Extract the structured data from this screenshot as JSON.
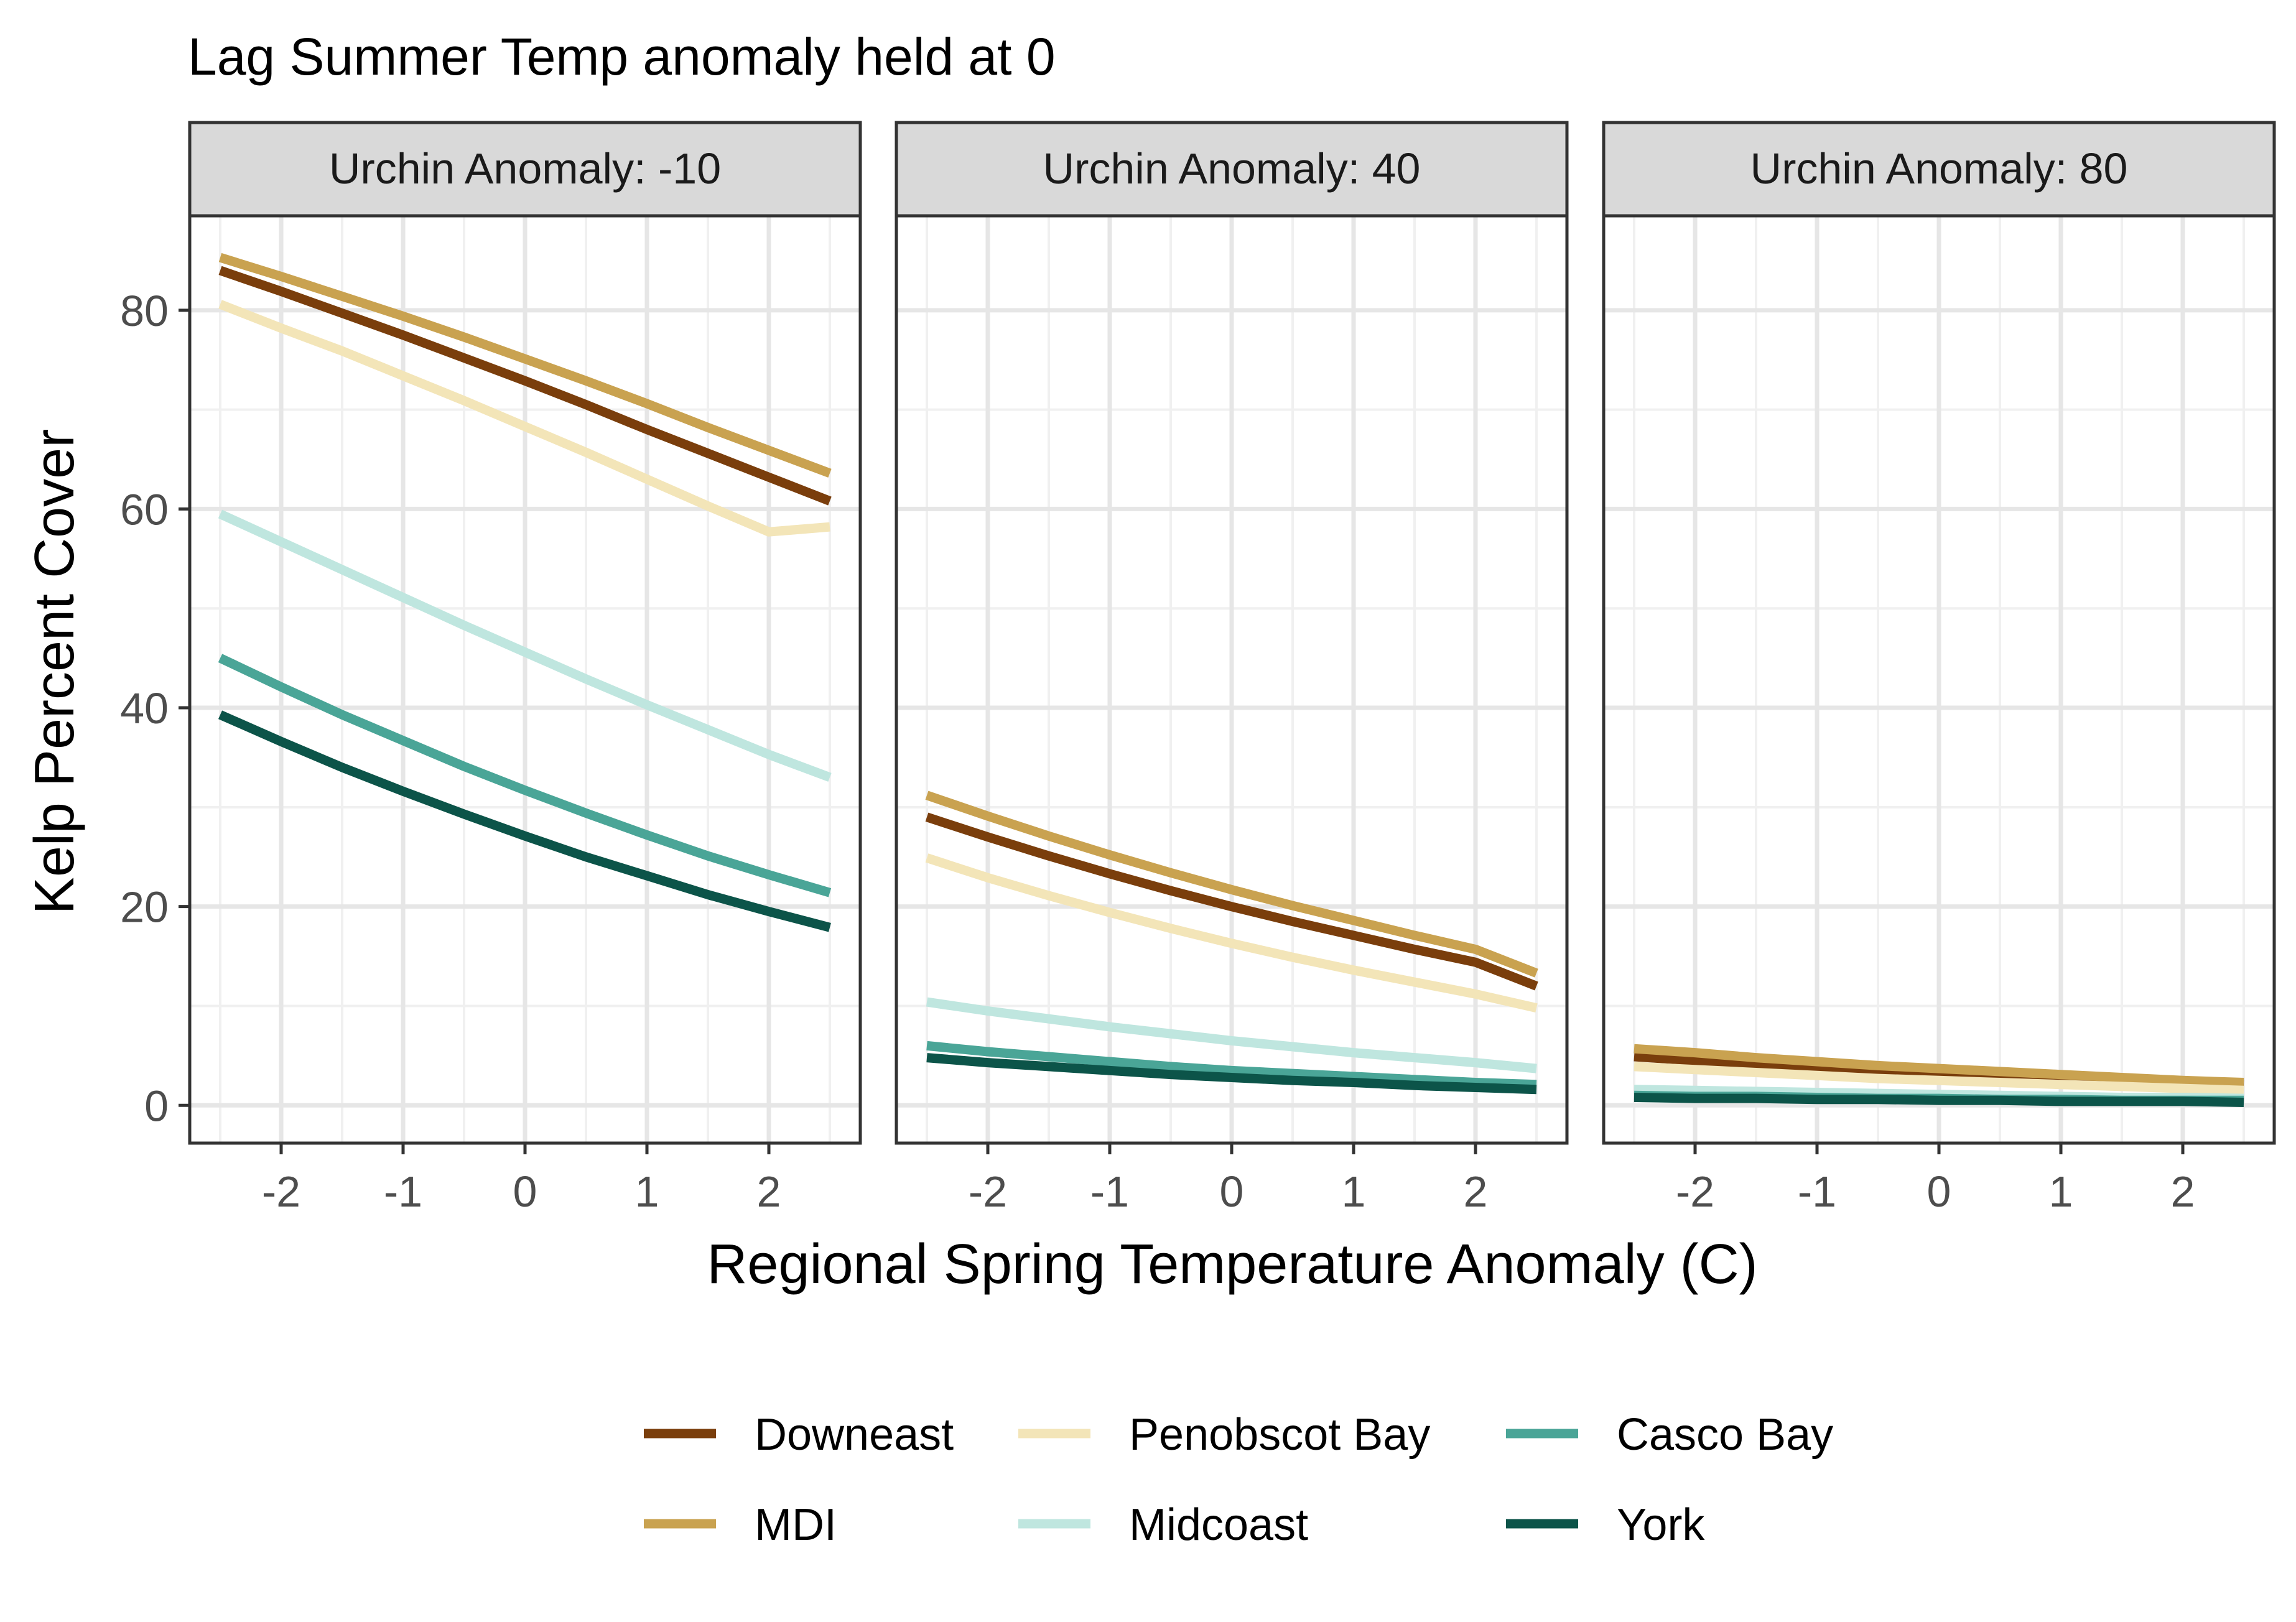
{
  "chart_data": {
    "type": "line",
    "title": "Lag Summer Temp anomaly held at 0",
    "xlabel": "Regional Spring Temperature Anomaly (C)",
    "ylabel": "Kelp Percent Cover",
    "xlim": [
      -2.75,
      2.75
    ],
    "ylim": [
      -3.8,
      89.5
    ],
    "x_ticks": [
      -2,
      -1,
      0,
      1,
      2
    ],
    "x_tick_labels": [
      "-2",
      "-1",
      "0",
      "1",
      "2"
    ],
    "y_ticks": [
      0,
      20,
      40,
      60,
      80
    ],
    "y_tick_labels": [
      "0",
      "20",
      "40",
      "60",
      "80"
    ],
    "grid": true,
    "legend_position": "bottom",
    "x": [
      -2.5,
      -2,
      -1.5,
      -1,
      -0.5,
      0,
      0.5,
      1,
      1.5,
      2,
      2.5
    ],
    "series_styles": [
      {
        "name": "Downeast",
        "color": "#7a3e0c"
      },
      {
        "name": "MDI",
        "color": "#c9a250"
      },
      {
        "name": "Penobscot Bay",
        "color": "#f3e5b8"
      },
      {
        "name": "Midcoast",
        "color": "#bfe6df"
      },
      {
        "name": "Casco Bay",
        "color": "#4aa597"
      },
      {
        "name": "York",
        "color": "#0c5449"
      }
    ],
    "panels": [
      {
        "strip": "Urchin Anomaly: -10",
        "series": [
          {
            "name": "Downeast",
            "values": [
              84.0,
              81.9,
              79.7,
              77.5,
              75.2,
              72.9,
              70.5,
              68.0,
              65.6,
              63.2,
              60.8
            ]
          },
          {
            "name": "MDI",
            "values": [
              85.3,
              83.4,
              81.4,
              79.4,
              77.3,
              75.1,
              72.9,
              70.6,
              68.2,
              65.9,
              63.6
            ]
          },
          {
            "name": "Penobscot Bay",
            "values": [
              80.6,
              78.2,
              75.9,
              73.4,
              70.9,
              68.3,
              65.7,
              63.0,
              60.3,
              57.7,
              58.2
            ]
          },
          {
            "name": "Midcoast",
            "values": [
              59.5,
              56.7,
              53.9,
              51.1,
              48.3,
              45.6,
              42.9,
              40.3,
              37.8,
              35.3,
              33.0
            ]
          },
          {
            "name": "Casco Bay",
            "values": [
              45.0,
              42.1,
              39.3,
              36.7,
              34.1,
              31.7,
              29.4,
              27.2,
              25.1,
              23.2,
              21.4
            ]
          },
          {
            "name": "York",
            "values": [
              39.3,
              36.6,
              34.0,
              31.6,
              29.3,
              27.1,
              25.0,
              23.1,
              21.2,
              19.5,
              17.9
            ]
          }
        ]
      },
      {
        "strip": "Urchin Anomaly: 40",
        "series": [
          {
            "name": "Downeast",
            "values": [
              29.0,
              27.0,
              25.1,
              23.3,
              21.6,
              20.0,
              18.5,
              17.1,
              15.7,
              14.4,
              12.0
            ]
          },
          {
            "name": "MDI",
            "values": [
              31.2,
              29.1,
              27.1,
              25.2,
              23.4,
              21.7,
              20.1,
              18.6,
              17.1,
              15.7,
              13.3
            ]
          },
          {
            "name": "Penobscot Bay",
            "values": [
              24.9,
              22.9,
              21.1,
              19.4,
              17.8,
              16.3,
              14.9,
              13.6,
              12.4,
              11.2,
              9.8
            ]
          },
          {
            "name": "Midcoast",
            "values": [
              10.4,
              9.5,
              8.7,
              7.9,
              7.2,
              6.5,
              5.9,
              5.3,
              4.8,
              4.3,
              3.7
            ]
          },
          {
            "name": "Casco Bay",
            "values": [
              6.0,
              5.4,
              4.9,
              4.4,
              3.9,
              3.5,
              3.2,
              2.9,
              2.6,
              2.3,
              2.1
            ]
          },
          {
            "name": "York",
            "values": [
              4.8,
              4.3,
              3.9,
              3.5,
              3.1,
              2.8,
              2.5,
              2.3,
              2.0,
              1.8,
              1.6
            ]
          }
        ]
      },
      {
        "strip": "Urchin Anomaly: 80",
        "series": [
          {
            "name": "Downeast",
            "values": [
              4.9,
              4.5,
              4.1,
              3.8,
              3.5,
              3.2,
              3.0,
              2.7,
              2.5,
              2.3,
              2.1
            ]
          },
          {
            "name": "MDI",
            "values": [
              5.7,
              5.3,
              4.8,
              4.4,
              4.0,
              3.7,
              3.4,
              3.1,
              2.8,
              2.5,
              2.3
            ]
          },
          {
            "name": "Penobscot Bay",
            "values": [
              3.9,
              3.6,
              3.3,
              3.0,
              2.7,
              2.5,
              2.3,
              2.1,
              1.9,
              1.7,
              1.5
            ]
          },
          {
            "name": "Midcoast",
            "values": [
              1.6,
              1.5,
              1.4,
              1.3,
              1.2,
              1.1,
              1.0,
              0.9,
              0.8,
              0.8,
              0.7
            ]
          },
          {
            "name": "Casco Bay",
            "values": [
              1.0,
              0.9,
              0.9,
              0.8,
              0.7,
              0.7,
              0.6,
              0.6,
              0.5,
              0.5,
              0.5
            ]
          },
          {
            "name": "York",
            "values": [
              0.8,
              0.7,
              0.7,
              0.6,
              0.6,
              0.5,
              0.5,
              0.4,
              0.4,
              0.4,
              0.3
            ]
          }
        ]
      }
    ]
  }
}
